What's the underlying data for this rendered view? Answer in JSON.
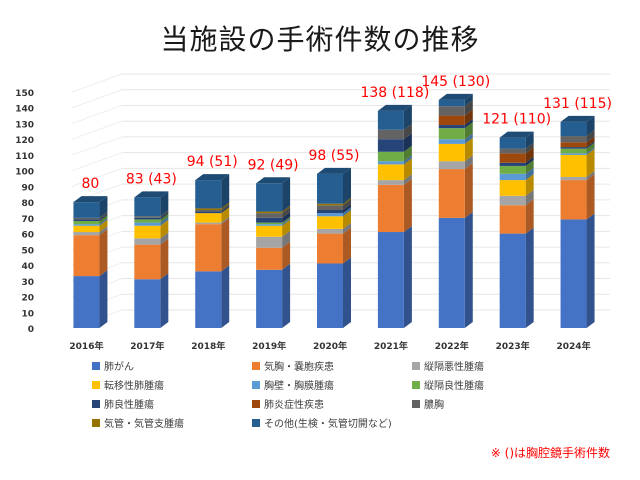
{
  "title": "当施設の手術件数の推移",
  "footnote": "※ ()は胸腔鏡手術件数",
  "chart_data": {
    "type": "bar",
    "stacked": true,
    "three_d": true,
    "title": "当施設の手術件数の推移",
    "xlabel": "",
    "ylabel": "",
    "ylim": [
      0,
      150
    ],
    "yticks": [
      0,
      10,
      20,
      30,
      40,
      50,
      60,
      70,
      80,
      90,
      100,
      110,
      120,
      130,
      140,
      150
    ],
    "grid": true,
    "legend_position": "bottom",
    "categories": [
      "2016年",
      "2017年",
      "2018年",
      "2019年",
      "2020年",
      "2021年",
      "2022年",
      "2023年",
      "2024年"
    ],
    "totals_labels": [
      "80",
      "83 (43)",
      "94 (51)",
      "92 (49)",
      "98 (55)",
      "138 (118)",
      "145 (130)",
      "121 (110)",
      "131 (115)"
    ],
    "totals": [
      80,
      83,
      94,
      92,
      98,
      138,
      145,
      121,
      131
    ],
    "thoracoscopic": [
      null,
      43,
      51,
      49,
      55,
      118,
      130,
      110,
      115
    ],
    "label_color": "#ff0000",
    "series": [
      {
        "name": "肺がん",
        "color": "#4472c4",
        "values": [
          33,
          31,
          36,
          37,
          41,
          61,
          70,
          60,
          69
        ]
      },
      {
        "name": "気胸・嚢胞疾患",
        "color": "#ed7d31",
        "values": [
          26,
          22,
          30,
          14,
          19,
          30,
          31,
          18,
          25
        ]
      },
      {
        "name": "縦隔悪性腫瘍",
        "color": "#a5a5a5",
        "values": [
          2,
          4,
          1,
          7,
          3,
          3,
          5,
          6,
          2
        ]
      },
      {
        "name": "転移性肺腫瘍",
        "color": "#ffc000",
        "values": [
          4,
          8,
          6,
          7,
          8,
          10,
          11,
          10,
          14
        ]
      },
      {
        "name": "胸壁・胸膜腫瘍",
        "color": "#5b9bd5",
        "values": [
          1,
          2,
          0,
          1,
          2,
          2,
          3,
          4,
          1
        ]
      },
      {
        "name": "縦隔良性腫瘍",
        "color": "#70ad47",
        "values": [
          2,
          2,
          0,
          1,
          0,
          6,
          7,
          5,
          3
        ]
      },
      {
        "name": "肺良性腫瘍",
        "color": "#264478",
        "values": [
          1,
          1,
          1,
          3,
          2,
          8,
          2,
          2,
          1
        ]
      },
      {
        "name": "肺炎症性疾患",
        "color": "#9e480e",
        "values": [
          0,
          0,
          0,
          0,
          0,
          0,
          6,
          6,
          3
        ]
      },
      {
        "name": "膿胸",
        "color": "#636363",
        "values": [
          1,
          1,
          1,
          3,
          3,
          6,
          6,
          3,
          4
        ]
      },
      {
        "name": "気管・気管支腫瘍",
        "color": "#997300",
        "values": [
          0,
          0,
          1,
          1,
          1,
          0,
          0,
          0,
          0
        ]
      },
      {
        "name": "その他(生検・気管切開など)",
        "color": "#255e91",
        "values": [
          10,
          12,
          18,
          18,
          19,
          12,
          4,
          7,
          9
        ]
      }
    ]
  }
}
